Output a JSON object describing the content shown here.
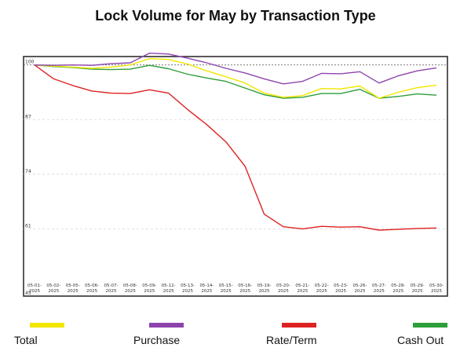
{
  "chart_data": {
    "type": "line",
    "title": "Lock Volume for May by Transaction Type",
    "xlabel": "",
    "ylabel": "",
    "categories": [
      "05-01-2025",
      "05-02-2025",
      "05-05-2025",
      "05-06-2025",
      "05-07-2025",
      "05-08-2025",
      "05-09-2025",
      "05-12-2025",
      "05-13-2025",
      "05-14-2025",
      "05-15-2025",
      "05-16-2025",
      "05-19-2025",
      "05-20-2025",
      "05-21-2025",
      "05-22-2025",
      "05-23-2025",
      "05-26-2025",
      "05-27-2025",
      "05-28-2025",
      "05-29-2025",
      "05-30-2025"
    ],
    "tick_labels": [
      [
        "05-01-",
        "2025"
      ],
      [
        "05-02-",
        "2025"
      ],
      [
        "05-05-",
        "2025"
      ],
      [
        "05-06-",
        "2025"
      ],
      [
        "05-07-",
        "2025"
      ],
      [
        "05-08-",
        "2025"
      ],
      [
        "05-09-",
        "2025"
      ],
      [
        "05-12-",
        "2025"
      ],
      [
        "05-13-",
        "2025"
      ],
      [
        "05-14-",
        "2025"
      ],
      [
        "05-15-",
        "2025"
      ],
      [
        "05-16-",
        "2025"
      ],
      [
        "05-19-",
        "2025"
      ],
      [
        "05-20-",
        "2025"
      ],
      [
        "05-21-",
        "2025"
      ],
      [
        "05-22-",
        "2025"
      ],
      [
        "05-23-",
        "2025"
      ],
      [
        "05-26-",
        "2025"
      ],
      [
        "05-27-",
        "2025"
      ],
      [
        "05-28-",
        "2025"
      ],
      [
        "05-29-",
        "2025"
      ],
      [
        "05-30-",
        "2025"
      ]
    ],
    "yticks": [
      45,
      61,
      74,
      87,
      100
    ],
    "ylim": [
      45,
      102
    ],
    "grid": true,
    "reference_line": 100,
    "legend_position": "bottom",
    "series": [
      {
        "name": "Total",
        "color": "#f2e600",
        "values": [
          100,
          99.7,
          99.5,
          99.2,
          99.5,
          100,
          101.5,
          101.3,
          100.2,
          98.6,
          97.2,
          95.7,
          93.3,
          92.3,
          92.7,
          94.4,
          94.3,
          95,
          92.1,
          93.5,
          94.6,
          95.2
        ]
      },
      {
        "name": "Purchase",
        "color": "#8e44ad",
        "values": [
          100,
          99.9,
          100,
          99.9,
          100.3,
          100.5,
          102.8,
          102.6,
          101.6,
          100.5,
          99.2,
          98.1,
          96.7,
          95.5,
          96.1,
          98,
          97.9,
          98.4,
          95.7,
          97.4,
          98.6,
          99.3
        ]
      },
      {
        "name": "Rate/Term",
        "color": "#dd2222",
        "values": [
          100,
          96.7,
          95.1,
          93.8,
          93.3,
          93.2,
          94.1,
          93.3,
          89.4,
          85.8,
          81.7,
          75.9,
          64.5,
          61.5,
          61,
          61.6,
          61.4,
          61.5,
          60.7,
          60.9,
          61.1,
          61.2
        ]
      },
      {
        "name": "Cash Out",
        "color": "#2e9e3a",
        "values": [
          100,
          99.6,
          99.4,
          99,
          98.9,
          99,
          99.9,
          99.1,
          97.8,
          96.9,
          96.1,
          94.5,
          92.9,
          92.1,
          92.3,
          93.2,
          93.2,
          94.2,
          92.1,
          92.5,
          93.1,
          92.8
        ]
      }
    ]
  }
}
